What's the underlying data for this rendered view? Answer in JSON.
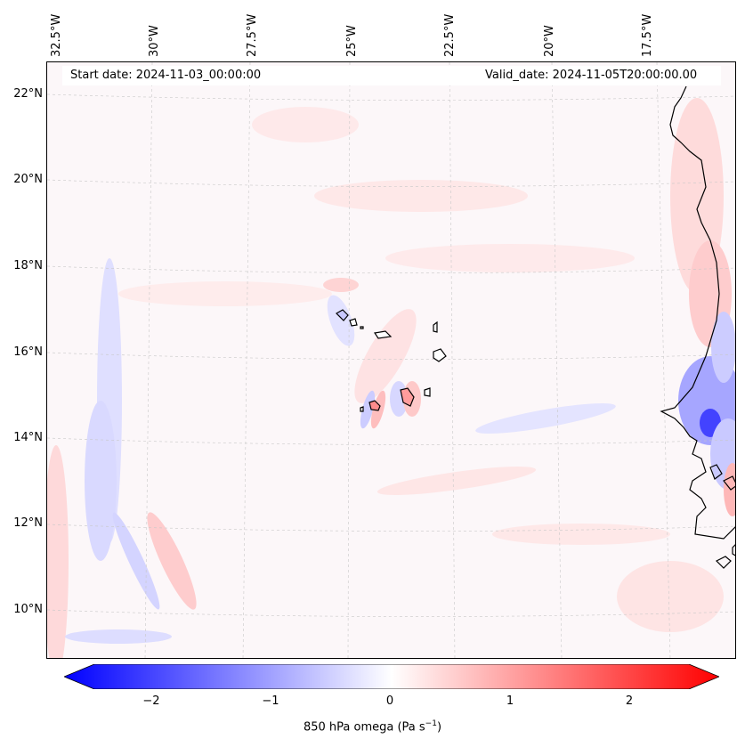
{
  "map": {
    "start_date": "Start date: 2024-11-03_00:00:00",
    "valid_date": "Valid_date: 2024-11-05T20:00:00.00",
    "lon_labels": [
      "32.5°W",
      "30°W",
      "27.5°W",
      "25°W",
      "22.5°W",
      "20°W",
      "17.5°W"
    ],
    "lat_labels": [
      "22°N",
      "20°N",
      "18°N",
      "16°N",
      "14°N",
      "12°N",
      "10°N"
    ],
    "colors": {
      "negative": "#0000ff",
      "neutral": "#ffffff",
      "positive": "#ff0000",
      "coast": "#000000"
    }
  },
  "colorbar": {
    "ticks": [
      "−2",
      "−1",
      "0",
      "1",
      "2"
    ],
    "label_text": "850 hPa omega (Pa s",
    "label_exp": "−1",
    "label_close": ")"
  }
}
